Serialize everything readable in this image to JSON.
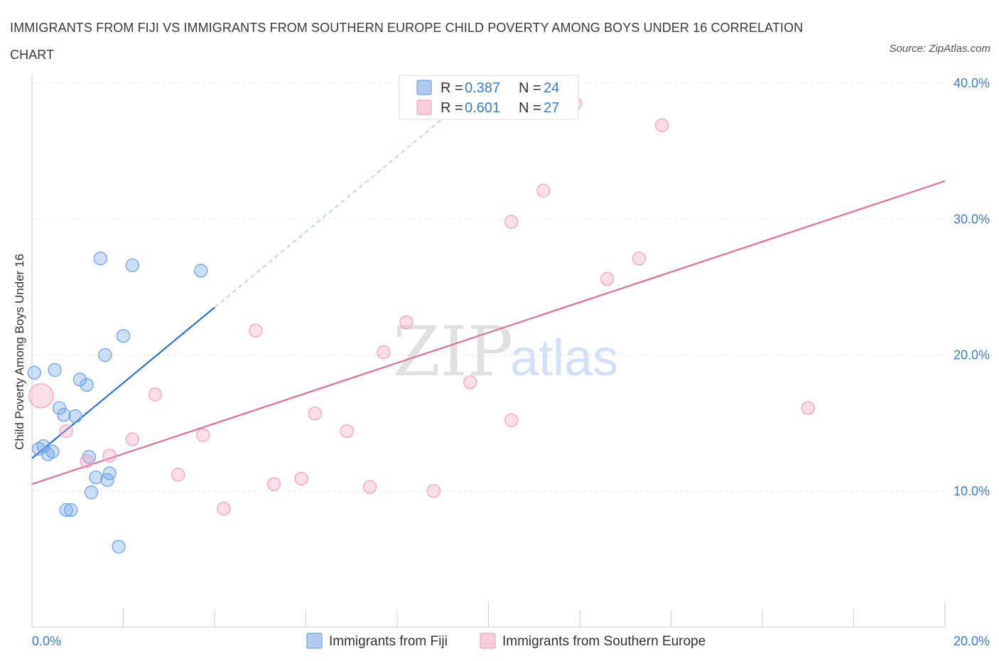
{
  "chart_data": {
    "type": "scatter",
    "title": "IMMIGRANTS FROM FIJI VS IMMIGRANTS FROM SOUTHERN EUROPE CHILD POVERTY AMONG BOYS UNDER 16 CORRELATION CHART",
    "source": "Source: ZipAtlas.com",
    "ylabel": "Child Poverty Among Boys Under 16",
    "xlim": [
      0,
      20
    ],
    "ylim": [
      0,
      40
    ],
    "x_tick_labels": [
      "0.0%",
      "20.0%"
    ],
    "y_ticks": [
      10,
      20,
      30,
      40
    ],
    "y_tick_labels": [
      "10.0%",
      "20.0%",
      "30.0%",
      "40.0%"
    ],
    "watermark": {
      "zip": "ZIP",
      "atlas": "atlas"
    },
    "series": [
      {
        "name": "Immigrants from Fiji",
        "color": "#6fa3e8",
        "line_color": "#2a6fd0",
        "R": "0.387",
        "N": "24",
        "trend": {
          "x0": 0.0,
          "y0": 12.4,
          "x1": 4.0,
          "y1": 23.5,
          "dash_to_x": 9.0,
          "dash_to_y": 37.4
        },
        "points": [
          [
            0.05,
            18.7,
            9
          ],
          [
            0.5,
            18.9,
            9
          ],
          [
            1.05,
            18.2,
            9
          ],
          [
            1.2,
            17.8,
            9
          ],
          [
            1.6,
            20.0,
            9
          ],
          [
            2.0,
            21.4,
            9
          ],
          [
            1.5,
            27.1,
            9
          ],
          [
            2.2,
            26.6,
            9
          ],
          [
            3.7,
            26.2,
            9
          ],
          [
            0.6,
            16.1,
            9
          ],
          [
            0.7,
            15.6,
            9
          ],
          [
            0.95,
            15.5,
            9
          ],
          [
            0.15,
            13.1,
            9
          ],
          [
            0.25,
            13.3,
            9
          ],
          [
            0.35,
            12.7,
            9
          ],
          [
            0.45,
            12.9,
            9
          ],
          [
            1.25,
            12.5,
            9
          ],
          [
            1.4,
            11.0,
            9
          ],
          [
            1.7,
            11.3,
            9
          ],
          [
            1.65,
            10.8,
            9
          ],
          [
            1.3,
            9.9,
            9
          ],
          [
            0.75,
            8.6,
            9
          ],
          [
            0.85,
            8.6,
            9
          ],
          [
            1.9,
            5.9,
            9
          ]
        ]
      },
      {
        "name": "Immigrants from Southern Europe",
        "color": "#f2a3bc",
        "line_color": "#e0709a",
        "R": "0.601",
        "N": "27",
        "trend": {
          "x0": 0.0,
          "y0": 10.5,
          "x1": 20.0,
          "y1": 32.8
        },
        "points": [
          [
            0.2,
            17.0,
            17
          ],
          [
            1.2,
            12.2,
            9
          ],
          [
            0.75,
            14.4,
            9
          ],
          [
            1.7,
            12.6,
            9
          ],
          [
            2.2,
            13.8,
            9
          ],
          [
            2.7,
            17.1,
            9
          ],
          [
            3.2,
            11.2,
            9
          ],
          [
            3.75,
            14.1,
            9
          ],
          [
            4.2,
            8.7,
            9
          ],
          [
            4.9,
            21.8,
            9
          ],
          [
            5.3,
            10.5,
            9
          ],
          [
            5.9,
            10.9,
            9
          ],
          [
            6.2,
            15.7,
            9
          ],
          [
            6.9,
            14.4,
            9
          ],
          [
            7.4,
            10.3,
            9
          ],
          [
            7.7,
            20.2,
            9
          ],
          [
            8.2,
            22.4,
            9
          ],
          [
            8.8,
            10.0,
            9
          ],
          [
            9.6,
            18.0,
            9
          ],
          [
            10.5,
            15.2,
            9
          ],
          [
            10.5,
            29.8,
            9
          ],
          [
            11.2,
            32.1,
            9
          ],
          [
            11.9,
            38.5,
            9
          ],
          [
            12.6,
            25.6,
            9
          ],
          [
            13.3,
            27.1,
            9
          ],
          [
            13.8,
            36.9,
            9
          ],
          [
            17.0,
            16.1,
            9
          ]
        ]
      }
    ]
  }
}
